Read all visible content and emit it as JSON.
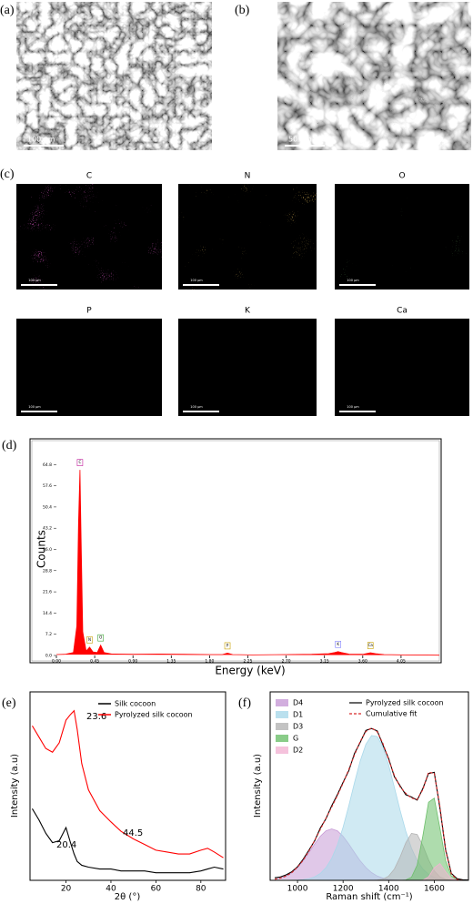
{
  "sem": [
    {
      "label": "(a)",
      "scale": "100 µm"
    },
    {
      "label": "(b)",
      "scale": "50 µm"
    }
  ],
  "eds_maps": {
    "label": "(c)",
    "maps": [
      {
        "element": "C",
        "scale": "100 µm",
        "color": "#c21a9b"
      },
      {
        "element": "N",
        "scale": "100 µm",
        "color": "#d98a1c"
      },
      {
        "element": "O",
        "scale": "100 µm",
        "color": "#3fc23a"
      },
      {
        "element": "P",
        "scale": "100 µm",
        "color": "#8c8a2a"
      },
      {
        "element": "K",
        "scale": "100 µm",
        "color": "#9a9a9a"
      },
      {
        "element": "Ca",
        "scale": "100 µm",
        "color": "#a6a42a"
      }
    ]
  },
  "chart_data": [
    {
      "type": "area",
      "panel_label": "(d)",
      "x_label": "Energy (keV)",
      "y_label": "Counts",
      "x": [
        0,
        0.1,
        0.2,
        0.24,
        0.26,
        0.277,
        0.29,
        0.31,
        0.35,
        0.39,
        0.43,
        0.48,
        0.52,
        0.56,
        0.65,
        0.9,
        1.2,
        1.5,
        1.8,
        1.95,
        2.01,
        2.07,
        2.3,
        2.7,
        3.0,
        3.2,
        3.27,
        3.31,
        3.35,
        3.45,
        3.6,
        3.69,
        3.75,
        3.85,
        4.1,
        4.5
      ],
      "series": [
        {
          "name": "Spectrum",
          "color": "#ff0000",
          "values": [
            0.3,
            0.4,
            1.0,
            10,
            45,
            63,
            40,
            8,
            1.5,
            2.8,
            1.2,
            1.0,
            3.5,
            1.0,
            0.5,
            0.4,
            0.5,
            0.4,
            0.3,
            0.3,
            0.8,
            0.3,
            0.2,
            0.3,
            0.4,
            0.6,
            1.0,
            1.3,
            1.0,
            0.4,
            0.4,
            0.9,
            0.6,
            0.3,
            0.2,
            0.1
          ]
        }
      ],
      "peak_labels": [
        "C",
        "N",
        "O",
        "P",
        "K",
        "Ca"
      ],
      "peak_x": [
        0.277,
        0.39,
        0.52,
        2.01,
        3.31,
        3.69
      ],
      "peak_colors": [
        "#c21a9b",
        "#c8a000",
        "#3fa83a",
        "#c8a000",
        "#8080ff",
        "#c8a000"
      ],
      "xlim": [
        0,
        4.5
      ],
      "ylim": [
        0,
        72
      ],
      "xticks": [
        {
          "value": 0,
          "label": "0.00"
        },
        0.45,
        {
          "value": 0.9,
          "label": "0.90"
        },
        1.35,
        {
          "value": 1.8,
          "label": "1.80"
        },
        2.25,
        {
          "value": 2.7,
          "label": "2.70"
        },
        3.15,
        {
          "value": 3.6,
          "label": "3.60"
        },
        4.05
      ],
      "yticks": [
        {
          "value": 0,
          "label": "0.0"
        },
        7.2,
        14.4,
        21.6,
        28.8,
        {
          "value": 36,
          "label": "36.0"
        },
        43.2,
        50.4,
        57.6,
        64.8
      ]
    },
    {
      "type": "line",
      "panel_label": "(e)",
      "x_label": "2θ (°)",
      "y_label": "Intensity (a.u)",
      "x": [
        5,
        8,
        11,
        14,
        17,
        20,
        22,
        23.6,
        25,
        27,
        30,
        35,
        40,
        44.5,
        50,
        55,
        60,
        65,
        70,
        75,
        80,
        83,
        86,
        90
      ],
      "series": [
        {
          "name": "Silk cocoon",
          "color": "#000000",
          "values": [
            38,
            32,
            25,
            20,
            21,
            28,
            20,
            14,
            10,
            8,
            7,
            6,
            6,
            5,
            5,
            5,
            4,
            4,
            4,
            4,
            5,
            6,
            7,
            6
          ]
        },
        {
          "name": "Pyrolyzed silk cocoon",
          "color": "#ff0000",
          "values": [
            82,
            76,
            70,
            68,
            73,
            85,
            88,
            90,
            80,
            62,
            48,
            37,
            31,
            26,
            22,
            19,
            16,
            15,
            14,
            14,
            16,
            17,
            15,
            12
          ]
        }
      ],
      "annotations": [
        "23.6",
        "20.4",
        "44.5"
      ],
      "xlim": [
        4,
        91
      ],
      "ylim": [
        0,
        100
      ],
      "xticks": [
        20,
        40,
        60,
        80
      ]
    },
    {
      "type": "line",
      "panel_label": "(f)",
      "x_label": "Raman shift (cm⁻¹)",
      "y_label": "Intensity (a.u)",
      "x": [
        900,
        925,
        950,
        975,
        1000,
        1025,
        1050,
        1075,
        1100,
        1125,
        1150,
        1175,
        1200,
        1225,
        1250,
        1275,
        1300,
        1325,
        1350,
        1375,
        1400,
        1425,
        1450,
        1475,
        1500,
        1525,
        1550,
        1575,
        1600,
        1625,
        1650,
        1675,
        1700,
        1725,
        1750
      ],
      "series": [
        {
          "name": "D4",
          "color": "#c79ad6",
          "style": "filled",
          "values": [
            0.6,
            1.3,
            2.5,
            4.5,
            7.5,
            11.4,
            16.2,
            21.2,
            25.7,
            28.9,
            30,
            28.9,
            25.7,
            21.2,
            16.2,
            11.4,
            7.5,
            4.5,
            2.5,
            1.3,
            0.6,
            0.3,
            0.1,
            0,
            0,
            0,
            0,
            0,
            0,
            0,
            0,
            0,
            0,
            0,
            0
          ]
        },
        {
          "name": "D1",
          "color": "#a9d8ea",
          "style": "filled",
          "values": [
            0,
            0,
            0,
            0.1,
            0.2,
            0.4,
            0.9,
            2.0,
            4.0,
            7.4,
            12.8,
            20.6,
            31.0,
            43.5,
            57.0,
            69.6,
            79.4,
            84.5,
            84.0,
            77.8,
            67.3,
            54.3,
            40.9,
            28.7,
            18.8,
            11.5,
            6.6,
            3.5,
            1.7,
            0.8,
            0.3,
            0.1,
            0,
            0,
            0
          ]
        },
        {
          "name": "D3",
          "color": "#b4b4b4",
          "style": "filled",
          "values": [
            0,
            0,
            0,
            0,
            0,
            0,
            0,
            0,
            0,
            0,
            0,
            0,
            0,
            0,
            0,
            0,
            0,
            0,
            0.2,
            0.7,
            2.5,
            6.6,
            13.6,
            21.9,
            27.4,
            26.8,
            20.3,
            12.0,
            5.5,
            2.0,
            0.6,
            0.1,
            0,
            0,
            0
          ]
        },
        {
          "name": "G",
          "color": "#6cbf6a",
          "style": "filled",
          "values": [
            0,
            0,
            0,
            0,
            0,
            0,
            0,
            0,
            0,
            0,
            0,
            0,
            0,
            0,
            0,
            0,
            0,
            0,
            0,
            0,
            0,
            0,
            0,
            0.2,
            1.8,
            8.9,
            26.0,
            45.6,
            48.0,
            30.3,
            11.5,
            2.6,
            0.4,
            0,
            0
          ]
        },
        {
          "name": "D2",
          "color": "#f3b3d3",
          "style": "filled",
          "values": [
            0,
            0,
            0,
            0,
            0,
            0,
            0,
            0,
            0,
            0,
            0,
            0,
            0,
            0,
            0,
            0,
            0,
            0,
            0,
            0,
            0,
            0,
            0,
            0,
            0,
            0,
            0.1,
            2.0,
            7.3,
            9.8,
            4.9,
            0.9,
            0.1,
            0,
            0
          ]
        },
        {
          "name": "Pyrolyzed silk cocoon",
          "color": "#000000",
          "style": "solid",
          "values": [
            1.5,
            2.0,
            3.2,
            5.0,
            7.9,
            12.3,
            17.6,
            23.0,
            30.5,
            36.0,
            43.5,
            50.0,
            57.2,
            64.0,
            74.0,
            80.5,
            87.5,
            88.6,
            87.2,
            79.0,
            71.0,
            60.5,
            55.2,
            50.0,
            48.6,
            46.8,
            53.6,
            62.4,
            63.0,
            42.0,
            17.8,
            4.0,
            1.0,
            0.3,
            0.2
          ]
        },
        {
          "name": "Cumulative fit",
          "color": "#d62728",
          "style": "dashed",
          "values": [
            0.6,
            1.3,
            2.5,
            4.5,
            7.7,
            11.8,
            17.1,
            23.2,
            29.7,
            36.3,
            42.8,
            49.5,
            56.7,
            64.7,
            73.2,
            81.0,
            86.9,
            89.0,
            86.7,
            79.8,
            70.4,
            61.2,
            54.6,
            50.8,
            48.0,
            47.2,
            53.0,
            63.1,
            62.5,
            42.9,
            17.3,
            3.7,
            0.5,
            0,
            0
          ]
        }
      ],
      "xlim": [
        880,
        1750
      ],
      "ylim": [
        0,
        110
      ],
      "xticks": [
        1000,
        1200,
        1400,
        1600
      ]
    }
  ]
}
